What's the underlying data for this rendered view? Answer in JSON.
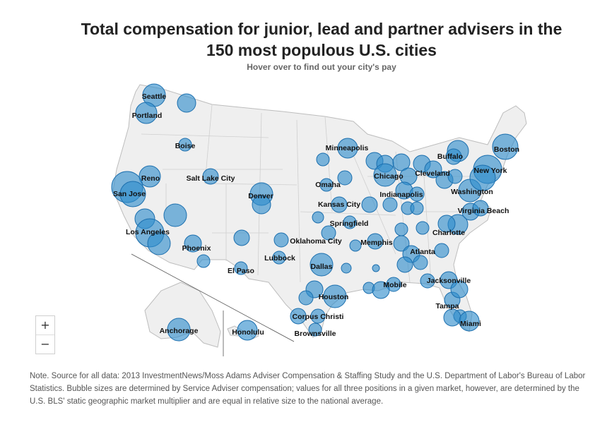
{
  "header": {
    "title_line1": "Total compensation for junior, lead and partner advisers in the",
    "title_line2": "150 most populous U.S. cities",
    "subtitle": "Hover over to find out your city's pay"
  },
  "zoom": {
    "in_label": "+",
    "out_label": "−"
  },
  "note": "Note. Source for all data: 2013 InvestmentNews/Moss Adams Adviser Compensation & Staffing Study and the U.S. Department of Labor's Bureau of Labor Statistics. Bubble sizes are determined by Service Adviser compensation; values for all three positions in a given market, however, are determined by the U.S. BLS' static geographic market multiplier and are equal in relative size to the national average.",
  "colors": {
    "bubble_fill": "#2e8ccc",
    "bubble_stroke": "#1c6fae",
    "land": "#efefef",
    "border": "#bdbdbd"
  },
  "city_labels": [
    "Seattle",
    "Portland",
    "Boise",
    "Reno",
    "Salt Lake City",
    "San Jose",
    "Los Angeles",
    "Phoenix",
    "Denver",
    "El Paso",
    "Lubbock",
    "Oklahoma City",
    "Dallas",
    "Houston",
    "Corpus Christi",
    "Brownsville",
    "Omaha",
    "Kansas City",
    "Springfield",
    "Minneapolis",
    "Chicago",
    "Indianapolis",
    "Memphis",
    "Mobile",
    "Atlanta",
    "Jacksonville",
    "Tampa",
    "Miami",
    "Charlotte",
    "Virginia Beach",
    "Washington",
    "Cleveland",
    "Buffalo",
    "New York",
    "Boston",
    "Anchorage",
    "Honolulu"
  ]
}
